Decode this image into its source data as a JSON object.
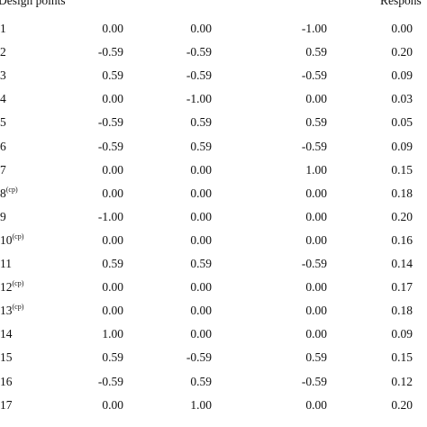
{
  "header": {
    "columns": [
      "Design points",
      "Respons"
    ]
  },
  "table": {
    "rows": [
      {
        "point": "1",
        "values": [
          "0.00",
          "0.00",
          "-1.00",
          "0.00"
        ]
      },
      {
        "point": "2",
        "values": [
          "-0.59",
          "-0.59",
          "0.59",
          "0.20"
        ]
      },
      {
        "point": "3",
        "values": [
          "0.59",
          "-0.59",
          "-0.59",
          "0.09"
        ]
      },
      {
        "point": "4",
        "values": [
          "0.00",
          "-1.00",
          "0.00",
          "0.03"
        ]
      },
      {
        "point": "5",
        "values": [
          "-0.59",
          "0.59",
          "0.59",
          "0.05"
        ]
      },
      {
        "point": "6",
        "values": [
          "-0.59",
          "0.59",
          "-0.59",
          "0.09"
        ]
      },
      {
        "point": "7",
        "values": [
          "0.00",
          "0.00",
          "1.00",
          "0.15"
        ]
      },
      {
        "point": "8",
        "note": "(cp)",
        "values": [
          "0.00",
          "0.00",
          "0.00",
          "0.18"
        ]
      },
      {
        "point": "9",
        "values": [
          "-1.00",
          "0.00",
          "0.00",
          "0.20"
        ]
      },
      {
        "point": "10",
        "note": "(cp)",
        "values": [
          "0.00",
          "0.00",
          "0.00",
          "0.16"
        ]
      },
      {
        "point": "11",
        "values": [
          "0.59",
          "0.59",
          "-0.59",
          "0.14"
        ]
      },
      {
        "point": "12",
        "note": "(cp)",
        "values": [
          "0.00",
          "0.00",
          "0.00",
          "0.17"
        ]
      },
      {
        "point": "13",
        "note": "(cp)",
        "values": [
          "0.00",
          "0.00",
          "0.00",
          "0.18"
        ]
      },
      {
        "point": "14",
        "values": [
          "1.00",
          "0.00",
          "0.00",
          "0.09"
        ]
      },
      {
        "point": "15",
        "values": [
          "0.59",
          "-0.59",
          "0.59",
          "0.15"
        ]
      },
      {
        "point": "16",
        "values": [
          "-0.59",
          "0.59",
          "-0.59",
          "0.12"
        ]
      },
      {
        "point": "17",
        "values": [
          "0.00",
          "1.00",
          "0.00",
          "0.20"
        ]
      }
    ]
  }
}
